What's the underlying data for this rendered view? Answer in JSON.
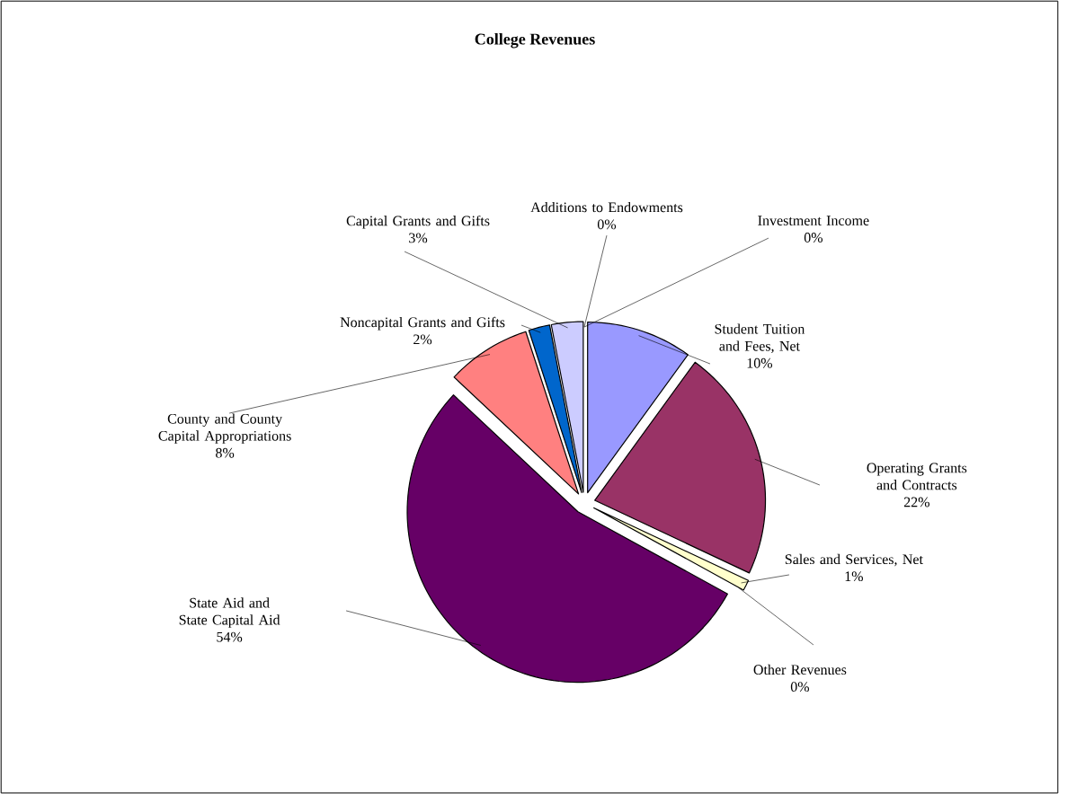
{
  "chart_data": {
    "type": "pie",
    "title": "College  Revenues",
    "categories": [
      "Student Tuition and Fees, Net",
      "Operating Grants and Contracts",
      "Sales and Services, Net",
      "Other Revenues",
      "State Aid and State Capital Aid",
      "County and County Capital Appropriations",
      "Noncapital Grants and Gifts",
      "Capital Grants and Gifts",
      "Additions to Endowments",
      "Investment Income"
    ],
    "values": [
      10,
      22,
      1,
      0,
      54,
      8,
      2,
      3,
      0,
      0
    ],
    "value_labels": [
      "10%",
      "22%",
      "1%",
      "0%",
      "54%",
      "8%",
      "2%",
      "3%",
      "0%",
      "0%"
    ],
    "colors": [
      "#9999ff",
      "#993366",
      "#ffffcc",
      "#ccffff",
      "#660066",
      "#ff8080",
      "#0066cc",
      "#ccccff",
      "#000080",
      "#ff00ff"
    ]
  }
}
